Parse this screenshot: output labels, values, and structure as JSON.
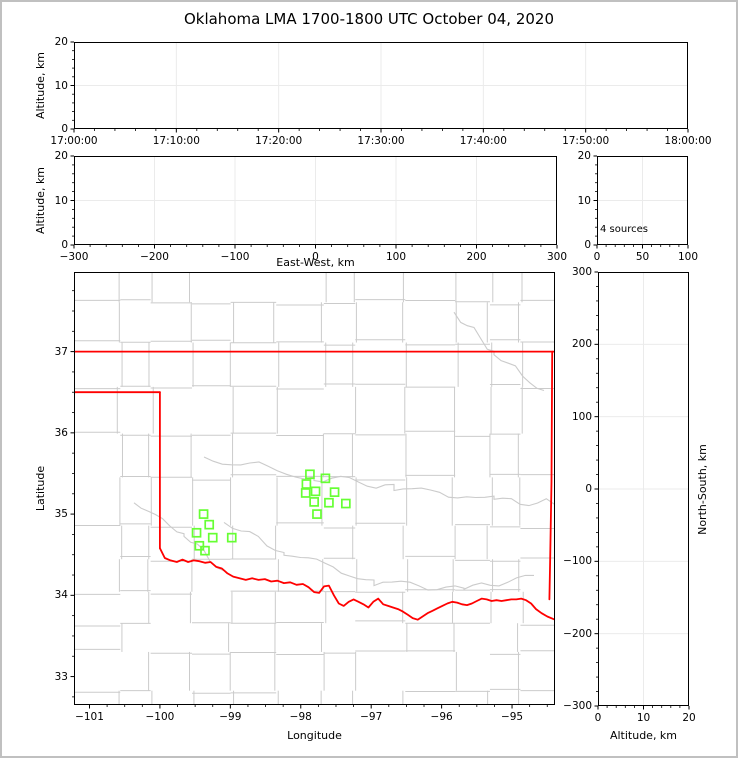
{
  "title": "Oklahoma LMA 1700-1800 UTC October 04, 2020",
  "colors": {
    "station_marker": "#66ff33",
    "state_border": "#ff0000",
    "county_line": "#cbcbcb",
    "gridline": "#ebebeb",
    "axis": "#000000",
    "frame": "#c0c0c0",
    "background": "#ffffff"
  },
  "chart_data": [
    {
      "id": "time_height",
      "type": "scatter",
      "xlabel": "",
      "ylabel": "Altitude, km",
      "xlim": [
        "17:00:00",
        "18:00:00"
      ],
      "xticks": [
        "17:00:00",
        "17:10:00",
        "17:20:00",
        "17:30:00",
        "17:40:00",
        "17:50:00",
        "18:00:00"
      ],
      "xminor_step_s": 120,
      "ylim": [
        0,
        20
      ],
      "yticks": [
        0,
        10,
        20
      ],
      "yminor_step": 2,
      "grid": true,
      "points": []
    },
    {
      "id": "ew_height",
      "type": "scatter",
      "xlabel": "East-West, km",
      "ylabel": "Altitude, km",
      "xlim": [
        -300,
        300
      ],
      "xticks": [
        -300,
        -200,
        -100,
        0,
        100,
        200,
        300
      ],
      "xminor_step": 20,
      "ylim": [
        0,
        20
      ],
      "yticks": [
        0,
        10,
        20
      ],
      "yminor_step": 2,
      "grid": true,
      "points": []
    },
    {
      "id": "alt_histogram",
      "type": "line",
      "xlabel": "",
      "ylabel": "",
      "annotation": "4 sources",
      "xlim": [
        0,
        100
      ],
      "xticks": [
        0,
        50,
        100
      ],
      "xminor_step": 10,
      "ylim": [
        0,
        20
      ],
      "yticks": [
        0,
        10,
        20
      ],
      "yminor_step": 2,
      "grid": true,
      "points": []
    },
    {
      "id": "plan_map",
      "type": "scatter",
      "xlabel": "Longitude",
      "ylabel": "Latitude",
      "xlim": [
        -101.22,
        -94.39
      ],
      "xticks": [
        -101,
        -100,
        -99,
        -98,
        -97,
        -96,
        -95
      ],
      "xminor_step": 0.25,
      "ylim": [
        32.65,
        37.98
      ],
      "yticks": [
        33,
        34,
        35,
        36,
        37
      ],
      "yminor_step": 0.25,
      "grid": false,
      "stations": [
        [
          -97.87,
          35.49
        ],
        [
          -97.65,
          35.44
        ],
        [
          -97.92,
          35.37
        ],
        [
          -97.79,
          35.28
        ],
        [
          -97.93,
          35.26
        ],
        [
          -97.52,
          35.27
        ],
        [
          -97.81,
          35.15
        ],
        [
          -97.6,
          35.14
        ],
        [
          -97.36,
          35.13
        ],
        [
          -97.77,
          35.0
        ],
        [
          -99.38,
          35.0
        ],
        [
          -99.3,
          34.87
        ],
        [
          -99.48,
          34.77
        ],
        [
          -99.25,
          34.71
        ],
        [
          -98.98,
          34.71
        ],
        [
          -99.44,
          34.61
        ],
        [
          -99.36,
          34.55
        ]
      ],
      "state_border": {
        "north": [
          [
            -101.22,
            37.0
          ],
          [
            -94.39,
            37.0
          ]
        ],
        "panhandle_south": [
          [
            -101.22,
            36.5
          ],
          [
            -100.0,
            36.5
          ]
        ],
        "meridian_100": [
          [
            -100.0,
            36.5
          ],
          [
            -100.0,
            34.58
          ]
        ],
        "east": [
          [
            -94.43,
            37.0
          ],
          [
            -94.44,
            35.4
          ],
          [
            -94.46,
            34.4
          ],
          [
            -94.47,
            33.95
          ]
        ],
        "red_river": [
          [
            -100.0,
            34.58
          ],
          [
            -99.93,
            34.46
          ],
          [
            -99.85,
            34.43
          ],
          [
            -99.76,
            34.41
          ],
          [
            -99.68,
            34.44
          ],
          [
            -99.6,
            34.41
          ],
          [
            -99.52,
            34.43
          ],
          [
            -99.44,
            34.42
          ],
          [
            -99.36,
            34.4
          ],
          [
            -99.28,
            34.41
          ],
          [
            -99.2,
            34.35
          ],
          [
            -99.12,
            34.33
          ],
          [
            -99.04,
            34.27
          ],
          [
            -98.96,
            34.23
          ],
          [
            -98.87,
            34.21
          ],
          [
            -98.78,
            34.19
          ],
          [
            -98.69,
            34.21
          ],
          [
            -98.6,
            34.19
          ],
          [
            -98.51,
            34.2
          ],
          [
            -98.42,
            34.17
          ],
          [
            -98.33,
            34.18
          ],
          [
            -98.24,
            34.15
          ],
          [
            -98.15,
            34.16
          ],
          [
            -98.06,
            34.13
          ],
          [
            -97.97,
            34.14
          ],
          [
            -97.89,
            34.1
          ],
          [
            -97.81,
            34.04
          ],
          [
            -97.74,
            34.03
          ],
          [
            -97.67,
            34.11
          ],
          [
            -97.6,
            34.12
          ],
          [
            -97.53,
            34.0
          ],
          [
            -97.46,
            33.9
          ],
          [
            -97.39,
            33.87
          ],
          [
            -97.32,
            33.92
          ],
          [
            -97.25,
            33.95
          ],
          [
            -97.18,
            33.92
          ],
          [
            -97.11,
            33.89
          ],
          [
            -97.04,
            33.85
          ],
          [
            -96.97,
            33.92
          ],
          [
            -96.9,
            33.96
          ],
          [
            -96.83,
            33.89
          ],
          [
            -96.76,
            33.87
          ],
          [
            -96.69,
            33.85
          ],
          [
            -96.62,
            33.83
          ],
          [
            -96.55,
            33.8
          ],
          [
            -96.48,
            33.76
          ],
          [
            -96.41,
            33.72
          ],
          [
            -96.34,
            33.7
          ],
          [
            -96.27,
            33.74
          ],
          [
            -96.2,
            33.78
          ],
          [
            -96.13,
            33.81
          ],
          [
            -96.06,
            33.84
          ],
          [
            -95.99,
            33.87
          ],
          [
            -95.92,
            33.9
          ],
          [
            -95.85,
            33.92
          ],
          [
            -95.78,
            33.91
          ],
          [
            -95.71,
            33.89
          ],
          [
            -95.64,
            33.88
          ],
          [
            -95.57,
            33.9
          ],
          [
            -95.5,
            33.93
          ],
          [
            -95.43,
            33.96
          ],
          [
            -95.36,
            33.95
          ],
          [
            -95.29,
            33.93
          ],
          [
            -95.22,
            33.94
          ],
          [
            -95.15,
            33.93
          ],
          [
            -95.08,
            33.94
          ],
          [
            -95.01,
            33.95
          ],
          [
            -94.94,
            33.95
          ],
          [
            -94.87,
            33.96
          ],
          [
            -94.8,
            33.94
          ],
          [
            -94.73,
            33.9
          ],
          [
            -94.66,
            33.83
          ],
          [
            -94.58,
            33.78
          ],
          [
            -94.5,
            33.74
          ],
          [
            -94.39,
            33.7
          ]
        ]
      }
    },
    {
      "id": "ns_height",
      "type": "scatter",
      "xlabel": "Altitude, km",
      "ylabel": "North-South, km",
      "xlim": [
        0,
        20
      ],
      "xticks": [
        0,
        10,
        20
      ],
      "xminor_step": 2,
      "ylim": [
        -300,
        300
      ],
      "yticks": [
        -300,
        -200,
        -100,
        0,
        100,
        200,
        300
      ],
      "yminor_step": 20,
      "grid": true,
      "points": []
    }
  ]
}
